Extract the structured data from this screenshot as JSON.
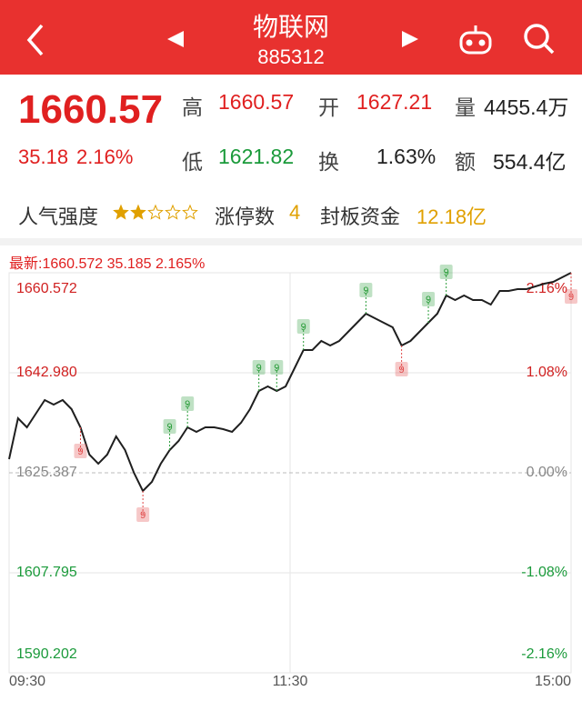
{
  "header": {
    "title": "物联网",
    "code": "885312"
  },
  "quote": {
    "price": 1660.57,
    "change": 35.18,
    "change_pct": "2.16%",
    "high_label": "高",
    "high": 1660.57,
    "open_label": "开",
    "open": 1627.21,
    "volume_label": "量",
    "volume": "4455.4万",
    "low_label": "低",
    "low": 1621.82,
    "turnover_label": "换",
    "turnover": "1.63%",
    "amount_label": "额",
    "amount": "554.4亿"
  },
  "stats": {
    "popularity_label": "人气强度",
    "stars": 2,
    "limit_up_label": "涨停数",
    "limit_up": 4,
    "fund_label": "封板资金",
    "fund": "12.18亿"
  },
  "latest": {
    "label": "最新:",
    "price": 1660.572,
    "change": 35.185,
    "pct": "2.165%"
  },
  "chart_data": {
    "type": "line",
    "color": "#1f1f1f",
    "values": [
      1627.79,
      1634.98,
      1633.38,
      1635.78,
      1638.18,
      1637.38,
      1638.18,
      1636.58,
      1633.38,
      1628.59,
      1626.99,
      1628.59,
      1631.78,
      1629.39,
      1625.39,
      1622.19,
      1623.79,
      1626.99,
      1629.39,
      1630.98,
      1633.38,
      1632.58,
      1633.38,
      1633.38,
      1633.06,
      1632.58,
      1634.18,
      1636.58,
      1639.78,
      1640.58,
      1639.78,
      1640.58,
      1643.78,
      1646.98,
      1646.98,
      1648.58,
      1647.78,
      1648.58,
      1650.18,
      1651.78,
      1653.38,
      1652.58,
      1651.78,
      1650.98,
      1647.78,
      1648.58,
      1650.18,
      1651.78,
      1653.38,
      1656.58,
      1655.78,
      1656.58,
      1655.78,
      1655.78,
      1654.98,
      1657.38,
      1657.38,
      1657.7,
      1657.7,
      1658.18,
      1658.66,
      1658.98,
      1659.78,
      1660.57
    ],
    "ylim": [
      1590.202,
      1660.572
    ],
    "yticks": [
      1660.572,
      {
        "value": 1642.98,
        "label": "1642.980"
      },
      1625.387,
      1607.795,
      1590.202
    ],
    "y2lim": [
      -2.16,
      2.16
    ],
    "y2ticks": [
      {
        "value": 2.16,
        "label": "2.16%"
      },
      {
        "value": 1.08,
        "label": "1.08%"
      },
      {
        "value": 0,
        "label": "0.00%"
      },
      {
        "value": -1.08,
        "label": "-1.08%"
      },
      {
        "value": -2.16,
        "label": "-2.16%"
      }
    ],
    "x_labels": [
      "09:30",
      "11:30",
      "15:00"
    ],
    "markers": [
      {
        "label": "9",
        "color": "#e04848"
      },
      {
        "label": "9",
        "color": "#e04848"
      },
      {
        "label": "9",
        "color": "#2a9d3a"
      },
      {
        "label": "9",
        "color": "#2a9d3a"
      },
      {
        "label": "9",
        "color": "#2a9d3a"
      },
      {
        "label": "9",
        "color": "#2a9d3a"
      },
      {
        "label": "9",
        "color": "#2a9d3a"
      },
      {
        "label": "9",
        "color": "#2a9d3a"
      },
      {
        "label": "9",
        "color": "#e04848"
      },
      {
        "label": "9",
        "color": "#2a9d3a"
      },
      {
        "label": "9",
        "color": "#2a9d3a"
      },
      {
        "label": "9",
        "color": "#e04848"
      }
    ]
  }
}
